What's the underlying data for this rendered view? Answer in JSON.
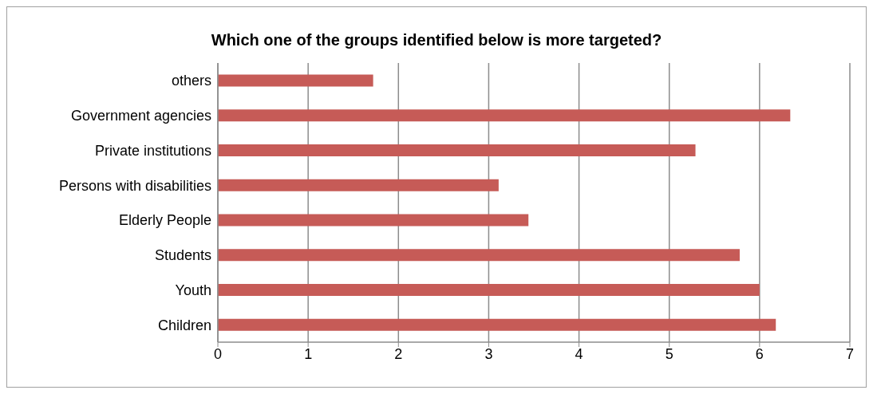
{
  "chart_data": {
    "type": "bar",
    "orientation": "horizontal",
    "title": "Which one of the groups identified below is more targeted?",
    "categories": [
      "others",
      "Government agencies",
      "Private institutions",
      "Persons with disabilities",
      "Elderly People",
      "Students",
      "Youth",
      "Children"
    ],
    "values": [
      1.72,
      6.34,
      5.29,
      3.11,
      3.44,
      5.78,
      6.0,
      6.18
    ],
    "color": "#c65b57",
    "xlim": [
      0,
      7
    ],
    "xticks": [
      0,
      1,
      2,
      3,
      4,
      5,
      6,
      7
    ],
    "grid": "x",
    "legend": false
  }
}
